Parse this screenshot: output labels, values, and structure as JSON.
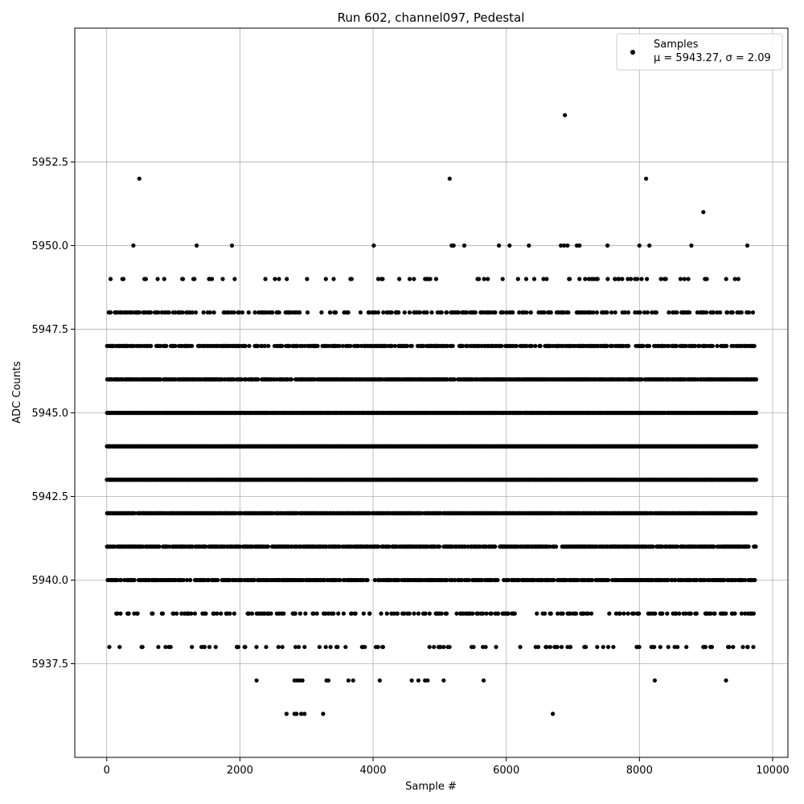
{
  "chart_data": {
    "type": "scatter",
    "title": "Run 602, channel097, Pedestal",
    "xlabel": "Sample #",
    "ylabel": "ADC Counts",
    "xlim": [
      -480,
      10230
    ],
    "ylim": [
      5934.7,
      5956.5
    ],
    "x_ticks": [
      0,
      2000,
      4000,
      6000,
      8000,
      10000
    ],
    "x_tick_labels": [
      "0",
      "2000",
      "4000",
      "6000",
      "8000",
      "10000"
    ],
    "y_ticks": [
      5937.5,
      5940.0,
      5942.5,
      5945.0,
      5947.5,
      5950.0,
      5952.5
    ],
    "y_tick_labels": [
      "5937.5",
      "5940.0",
      "5942.5",
      "5945.0",
      "5947.5",
      "5950.0",
      "5952.5"
    ],
    "grid": true,
    "marker_color": "#000000",
    "legend": {
      "position": "top-right",
      "label": "Samples",
      "stats": "μ = 5943.27, σ = 2.09"
    },
    "series": [
      {
        "name": "Samples",
        "density_levels": [
          {
            "y": 5936,
            "x": [
              2700,
              2820,
              2850,
              2920,
              2970,
              3250,
              6700
            ]
          },
          {
            "y": 5937,
            "x": [
              2250,
              2820,
              2860,
              2900,
              2940,
              3300,
              3330,
              3630,
              3700,
              4100,
              4580,
              4680,
              4780,
              4820,
              5060,
              5660,
              8230,
              9300
            ]
          },
          {
            "y": 5953.9,
            "x": [
              6880
            ]
          },
          {
            "y": 5952,
            "x": [
              490,
              5150,
              8100
            ]
          },
          {
            "y": 5951,
            "x": [
              8960
            ]
          },
          {
            "y": 5950,
            "x": [
              400,
              1350,
              1880,
              4010,
              5180,
              5210,
              5370,
              5890,
              6050,
              6340,
              6820,
              6870,
              6920,
              7060,
              7100,
              7520,
              8000,
              8150,
              8780,
              9620
            ]
          }
        ],
        "band_values": [
          5938,
          5939,
          5940,
          5941,
          5942,
          5943,
          5944,
          5945,
          5946,
          5947,
          5948,
          5949
        ],
        "band_density": [
          0.1,
          0.2,
          0.55,
          0.65,
          0.9,
          1.0,
          1.0,
          0.92,
          0.75,
          0.45,
          0.25,
          0.1
        ],
        "x_range": [
          0,
          9750
        ]
      }
    ]
  }
}
